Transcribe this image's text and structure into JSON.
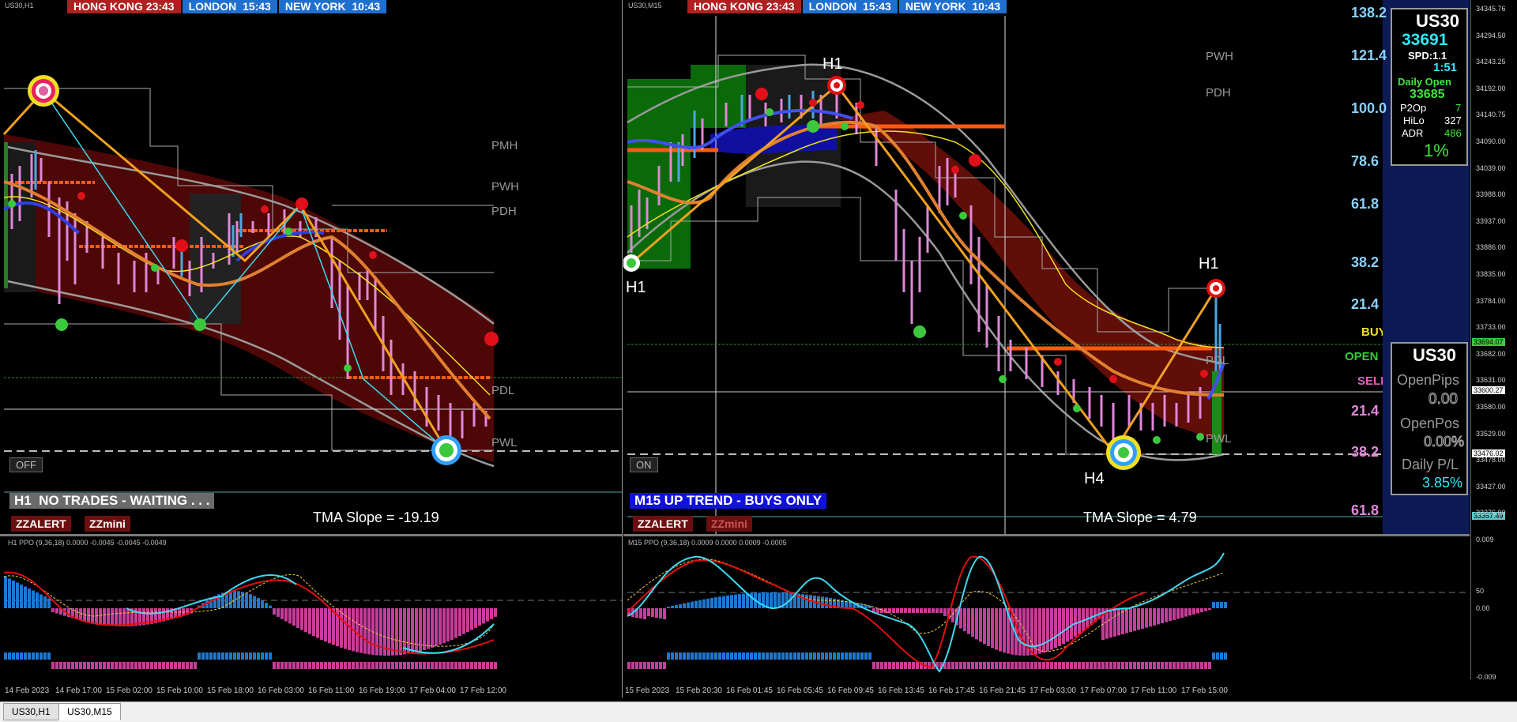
{
  "colors": {
    "hk": "#b02020",
    "london": "#1f6fcf",
    "newyork": "#1f6fcf",
    "bull": "#3cc83c",
    "bear": "#e0101a",
    "band": "#8a8a8a",
    "zigzag": "#f0a020",
    "ppo_blue": "#1e78d0",
    "ppo_magenta": "#c83c9a"
  },
  "clocks": {
    "hong_kong": "HONG KONG 23:43",
    "london": "LONDON  15:43",
    "new_york": "NEW YORK  10:43"
  },
  "chartA": {
    "symbol": "US30,H1",
    "toggle": "OFF",
    "status": "H1  NO TRADES - WAITING . . .",
    "tma": "TMA Slope = -19.19",
    "zz1": "ZZALERT",
    "zz2": "ZZmini",
    "levels": {
      "pmh": "PMH",
      "pwh": "PWH",
      "pdh": "PDH",
      "pdl": "PDL",
      "pwl": "PWL"
    },
    "ppo_label": "H1 PPO (9,36,18) 0.0000 -0.0045 -0.0045 -0.0049",
    "time_axis": [
      "14 Feb 2023",
      "14 Feb 17:00",
      "15 Feb 02:00",
      "15 Feb 10:00",
      "15 Feb 18:00",
      "16 Feb 03:00",
      "16 Feb 11:00",
      "16 Feb 19:00",
      "17 Feb 04:00",
      "17 Feb 12:00"
    ]
  },
  "chartB": {
    "symbol": "US30,M15",
    "toggle": "ON",
    "status": "M15 UP TREND - BUYS ONLY",
    "tma": "TMA Slope = 4.79",
    "zz1": "ZZALERT",
    "zz2": "ZZmini",
    "levels": {
      "pwh": "PWH",
      "pdh": "PDH",
      "pdl": "PDL",
      "pwl": "PWL"
    },
    "h_labels": {
      "h1_top": "H1",
      "h1_left": "H1",
      "h1_right": "H1",
      "h4": "H4"
    },
    "ppo_label": "M15 PPO (9,36,18) 0.0009 0.0000 0.0009 -0.0005",
    "time_axis": [
      "15 Feb 2023",
      "15 Feb 20:30",
      "16 Feb 01:45",
      "16 Feb 05:45",
      "16 Feb 09:45",
      "16 Feb 13:45",
      "16 Feb 17:45",
      "16 Feb 21:45",
      "17 Feb 03:00",
      "17 Feb 07:00",
      "17 Feb 11:00",
      "17 Feb 15:00"
    ],
    "fib": [
      "138.2",
      "121.4",
      "100.0",
      "78.6",
      "61.8",
      "38.2",
      "21.4",
      "21.4",
      "38.2",
      "61.8"
    ],
    "side_buy": "BUY",
    "side_open": "OPEN",
    "side_sell": "SELL",
    "price_scale": [
      "34345.76",
      "34294.50",
      "34243.25",
      "34192.00",
      "34140.75",
      "34090.00",
      "34039.00",
      "33988.00",
      "33937.00",
      "33886.00",
      "33835.00",
      "33784.00",
      "33733.00",
      "33682.00",
      "33631.00",
      "33580.00",
      "33529.00",
      "33478.00",
      "33427.00",
      "33376.00"
    ],
    "price_tags": {
      "p1": "33694.07",
      "p2": "33600.27",
      "p3": "33476.02",
      "p4": "33357.49"
    },
    "ppo_scale": {
      "top": "0.009",
      "mid": "50",
      "zero": "0.00",
      "bottom": "-0.009"
    }
  },
  "box1": {
    "sym": "US30",
    "price": "33691",
    "spd": "SPD:1.1",
    "timer": "1:51",
    "daily_open_label": "Daily Open",
    "daily_open": "33685",
    "p2op_label": "P2Op",
    "p2op": "7",
    "hilo_label": "HiLo",
    "hilo": "327",
    "adr_label": "ADR",
    "adr": "486",
    "pct": "1%"
  },
  "box2": {
    "sym": "US30",
    "openpips_label": "OpenPips",
    "openpips": "0.00",
    "openpos_label": "OpenPos",
    "openpos": "0.00%",
    "dpl_label": "Daily P/L",
    "dpl": "3.85%"
  },
  "tabs": [
    "US30,H1",
    "US30,M15"
  ]
}
